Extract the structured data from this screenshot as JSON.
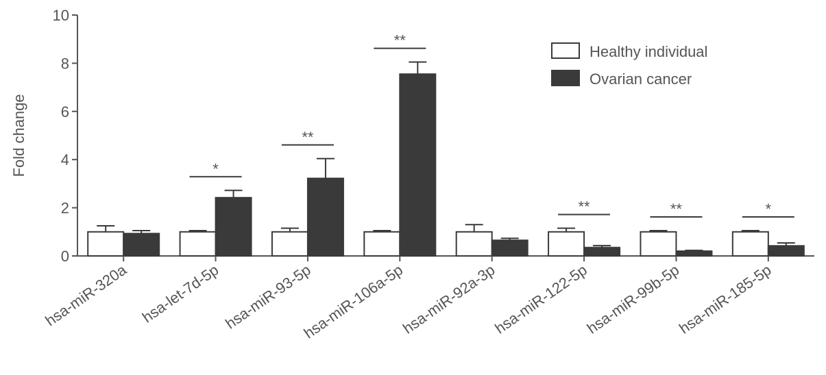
{
  "chart_data": {
    "type": "bar",
    "y_label": "Fold change",
    "categories": [
      "hsa-miR-320a",
      "hsa-let-7d-5p",
      "hsa-miR-93-5p",
      "hsa-miR-106a-5p",
      "hsa-miR-92a-3p",
      "hsa-miR-122-5p",
      "hsa-miR-99b-5p",
      "hsa-miR-185-5p"
    ],
    "series": [
      {
        "name": "Healthy individual",
        "color": "#ffffff",
        "values": [
          1.0,
          1.0,
          1.0,
          1.0,
          1.0,
          1.0,
          1.0,
          1.0
        ],
        "errors": [
          0.25,
          0.05,
          0.15,
          0.05,
          0.3,
          0.15,
          0.05,
          0.05
        ]
      },
      {
        "name": "Ovarian cancer",
        "color": "#3a3a3a",
        "values": [
          0.93,
          2.42,
          3.22,
          7.55,
          0.65,
          0.35,
          0.2,
          0.42
        ],
        "errors": [
          0.12,
          0.3,
          0.82,
          0.5,
          0.08,
          0.08,
          0.03,
          0.12
        ]
      }
    ],
    "significance": [
      null,
      "*",
      "**",
      "**",
      null,
      "**",
      "**",
      "*"
    ],
    "ylim": [
      0,
      10
    ],
    "yticks": [
      0,
      2,
      4,
      6,
      8,
      10
    ],
    "legend": "upper right"
  }
}
